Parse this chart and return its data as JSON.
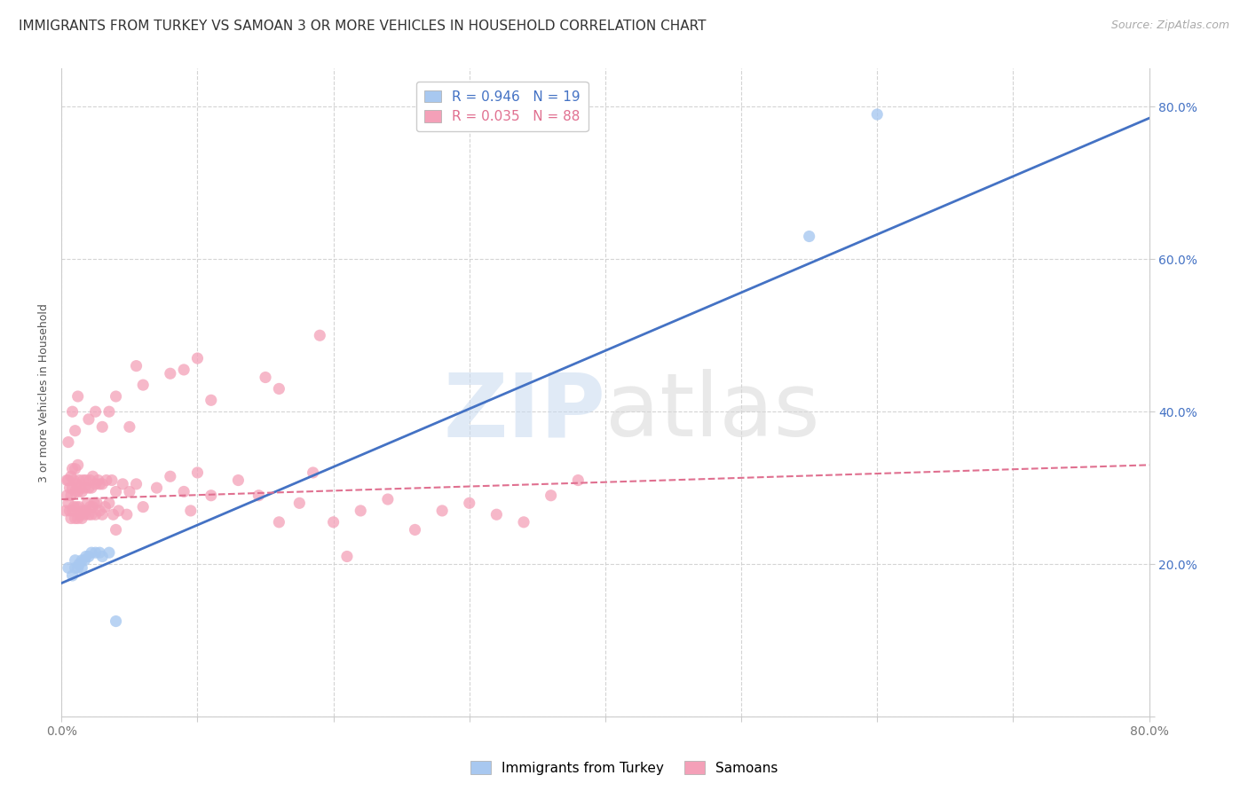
{
  "title": "IMMIGRANTS FROM TURKEY VS SAMOAN 3 OR MORE VEHICLES IN HOUSEHOLD CORRELATION CHART",
  "source": "Source: ZipAtlas.com",
  "ylabel": "3 or more Vehicles in Household",
  "xlim": [
    0.0,
    0.8
  ],
  "ylim": [
    0.0,
    0.85
  ],
  "x_ticks": [
    0.0,
    0.1,
    0.2,
    0.3,
    0.4,
    0.5,
    0.6,
    0.7,
    0.8
  ],
  "y_ticks": [
    0.0,
    0.2,
    0.4,
    0.6,
    0.8
  ],
  "y_tick_labels_right": [
    "",
    "20.0%",
    "40.0%",
    "60.0%",
    "80.0%"
  ],
  "blue_R": 0.946,
  "blue_N": 19,
  "pink_R": 0.035,
  "pink_N": 88,
  "blue_color": "#a8c8f0",
  "blue_line_color": "#4472c4",
  "pink_color": "#f4a0b8",
  "pink_line_color": "#e07090",
  "legend_label_blue": "Immigrants from Turkey",
  "legend_label_pink": "Samoans",
  "background_color": "#ffffff",
  "grid_color": "#d0d0d0",
  "blue_scatter_x": [
    0.005,
    0.008,
    0.01,
    0.01,
    0.012,
    0.013,
    0.015,
    0.015,
    0.017,
    0.018,
    0.02,
    0.022,
    0.025,
    0.028,
    0.03,
    0.035,
    0.04,
    0.55,
    0.6
  ],
  "blue_scatter_y": [
    0.195,
    0.185,
    0.195,
    0.205,
    0.195,
    0.2,
    0.195,
    0.205,
    0.205,
    0.21,
    0.21,
    0.215,
    0.215,
    0.215,
    0.21,
    0.215,
    0.125,
    0.63,
    0.79
  ],
  "blue_line_x0": 0.0,
  "blue_line_y0": 0.175,
  "blue_line_x1": 0.8,
  "blue_line_y1": 0.785,
  "pink_line_x0": 0.0,
  "pink_line_y0": 0.285,
  "pink_line_x1": 0.8,
  "pink_line_y1": 0.33,
  "pink_scatter_x": [
    0.003,
    0.004,
    0.004,
    0.005,
    0.005,
    0.006,
    0.006,
    0.007,
    0.007,
    0.007,
    0.008,
    0.008,
    0.008,
    0.009,
    0.009,
    0.01,
    0.01,
    0.01,
    0.011,
    0.011,
    0.012,
    0.012,
    0.012,
    0.013,
    0.013,
    0.014,
    0.014,
    0.015,
    0.015,
    0.016,
    0.016,
    0.017,
    0.017,
    0.018,
    0.018,
    0.019,
    0.02,
    0.02,
    0.021,
    0.021,
    0.022,
    0.022,
    0.023,
    0.023,
    0.024,
    0.025,
    0.025,
    0.026,
    0.027,
    0.028,
    0.028,
    0.03,
    0.03,
    0.032,
    0.033,
    0.035,
    0.037,
    0.038,
    0.04,
    0.04,
    0.042,
    0.045,
    0.048,
    0.05,
    0.055,
    0.06,
    0.07,
    0.08,
    0.09,
    0.095,
    0.1,
    0.11,
    0.13,
    0.145,
    0.16,
    0.175,
    0.185,
    0.2,
    0.21,
    0.22,
    0.24,
    0.26,
    0.28,
    0.3,
    0.32,
    0.34,
    0.36,
    0.38
  ],
  "pink_scatter_y": [
    0.27,
    0.29,
    0.31,
    0.28,
    0.31,
    0.27,
    0.3,
    0.26,
    0.29,
    0.315,
    0.27,
    0.3,
    0.325,
    0.275,
    0.31,
    0.26,
    0.295,
    0.325,
    0.275,
    0.305,
    0.26,
    0.295,
    0.33,
    0.275,
    0.31,
    0.265,
    0.3,
    0.26,
    0.295,
    0.27,
    0.31,
    0.265,
    0.3,
    0.27,
    0.31,
    0.28,
    0.265,
    0.3,
    0.275,
    0.31,
    0.265,
    0.3,
    0.275,
    0.315,
    0.28,
    0.265,
    0.305,
    0.28,
    0.31,
    0.27,
    0.305,
    0.265,
    0.305,
    0.275,
    0.31,
    0.28,
    0.31,
    0.265,
    0.245,
    0.295,
    0.27,
    0.305,
    0.265,
    0.295,
    0.305,
    0.275,
    0.3,
    0.315,
    0.295,
    0.27,
    0.32,
    0.29,
    0.31,
    0.29,
    0.255,
    0.28,
    0.32,
    0.255,
    0.21,
    0.27,
    0.285,
    0.245,
    0.27,
    0.28,
    0.265,
    0.255,
    0.29,
    0.31
  ],
  "pink_outliers_x": [
    0.005,
    0.008,
    0.01,
    0.012,
    0.02,
    0.025,
    0.03,
    0.035,
    0.04,
    0.05,
    0.055,
    0.06,
    0.08,
    0.09,
    0.1,
    0.11,
    0.15,
    0.16,
    0.19
  ],
  "pink_outliers_y": [
    0.36,
    0.4,
    0.375,
    0.42,
    0.39,
    0.4,
    0.38,
    0.4,
    0.42,
    0.38,
    0.46,
    0.435,
    0.45,
    0.455,
    0.47,
    0.415,
    0.445,
    0.43,
    0.5
  ],
  "title_fontsize": 11,
  "axis_label_fontsize": 9,
  "tick_fontsize": 10,
  "legend_fontsize": 11,
  "source_fontsize": 9
}
